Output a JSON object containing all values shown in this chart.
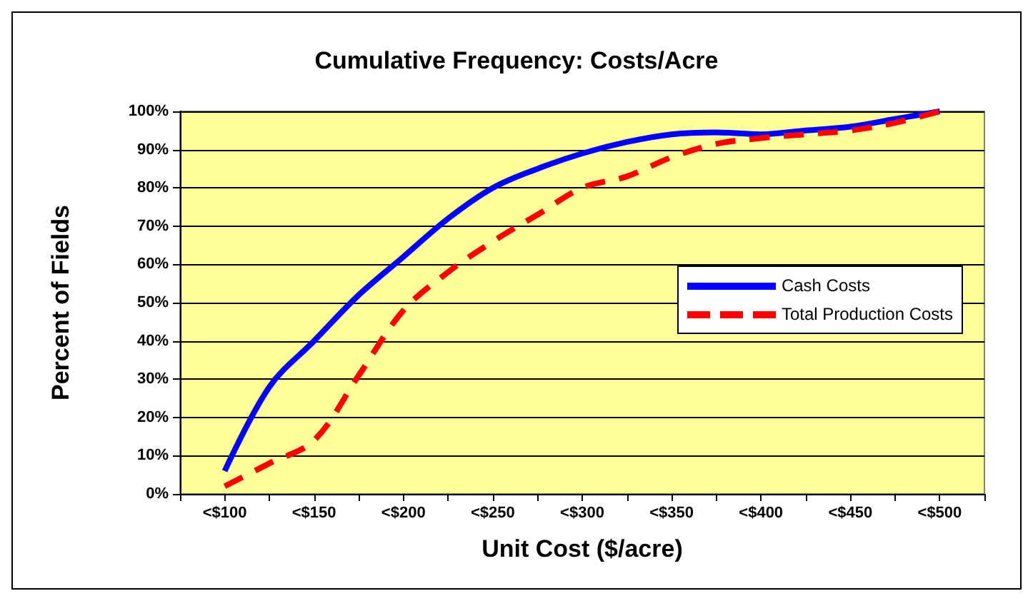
{
  "chart_data": {
    "type": "line",
    "title": "Cumulative Frequency: Costs/Acre",
    "xlabel": "Unit Cost ($/acre)",
    "ylabel": "Percent of Fields",
    "categories": [
      null,
      "<$100",
      null,
      "<$150",
      null,
      "<$200",
      null,
      "<$250",
      null,
      "<$300",
      null,
      "<$350",
      null,
      "<$400",
      null,
      "<$450",
      null,
      "<$500",
      null
    ],
    "series": [
      {
        "name": "Cash Costs",
        "color": "#0000ff",
        "line_style": "solid",
        "values": [
          null,
          6,
          28,
          40,
          52,
          62,
          72,
          80,
          85,
          89,
          92,
          94,
          94.5,
          94,
          95,
          96,
          98,
          100,
          null
        ]
      },
      {
        "name": "Total Production Costs",
        "color": "#ff0000",
        "line_style": "dashed",
        "values": [
          null,
          2,
          8,
          14,
          31,
          48,
          58,
          66,
          73,
          80,
          83,
          88,
          91.5,
          93,
          94,
          95,
          97,
          100,
          null
        ]
      }
    ],
    "ylim": [
      0,
      100
    ],
    "yticks": [
      {
        "value": 0,
        "label": "0%"
      },
      {
        "value": 10,
        "label": "10%"
      },
      {
        "value": 20,
        "label": "20%"
      },
      {
        "value": 30,
        "label": "30%"
      },
      {
        "value": 40,
        "label": "40%"
      },
      {
        "value": 50,
        "label": "50%"
      },
      {
        "value": 60,
        "label": "60%"
      },
      {
        "value": 70,
        "label": "70%"
      },
      {
        "value": 80,
        "label": "80%"
      },
      {
        "value": 90,
        "label": "90%"
      },
      {
        "value": 100,
        "label": "100%"
      }
    ],
    "grid": "y",
    "legend": "right",
    "marker": "none"
  }
}
